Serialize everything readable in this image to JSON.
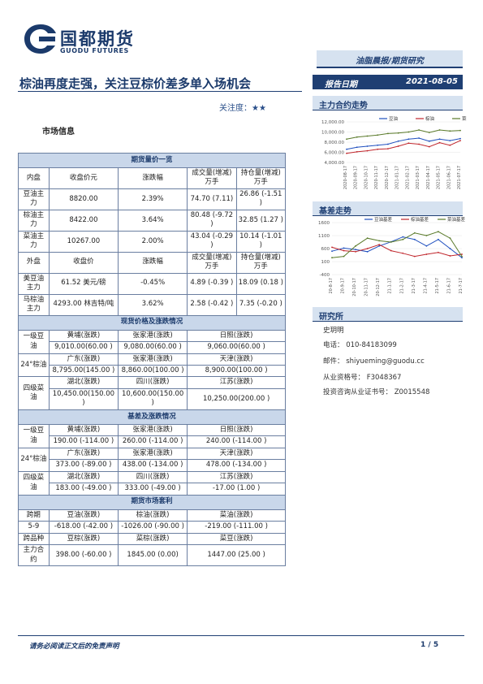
{
  "header": {
    "logo_cn": "国都期货",
    "logo_en": "GUODU FUTURES",
    "category": "油脂晨报/期货研究",
    "title": "棕油再度走强，关注豆棕价差多单入场机会",
    "focus_label": "关注度：",
    "focus_stars": "★★",
    "date_label": "报告日期",
    "date_value": "2021-08-05"
  },
  "section_market": "市场信息",
  "table": {
    "futures_title": "期货量价一览",
    "inner_head": [
      "内盘",
      "收盘价元",
      "涨跌幅",
      "成交量(增减)万手",
      "持仓量(增减)万手"
    ],
    "inner_rows": [
      [
        "豆油主力",
        "8820.00",
        "2.39%",
        "74.70 (7.11)",
        "26.86 (-1.51 )"
      ],
      [
        "棕油主力",
        "8422.00",
        "3.64%",
        "80.48 (-9.72 )",
        "32.85 (1.27 )"
      ],
      [
        "菜油主力",
        "10267.00",
        "2.00%",
        "43.04 (-0.29 )",
        "10.14 (-1.01 )"
      ]
    ],
    "outer_head": [
      "外盘",
      "收盘价",
      "涨跌幅",
      "成交量(增减)万手",
      "持仓量(增减)万手"
    ],
    "outer_rows": [
      [
        "美豆油主力",
        "61.52 美元/磅",
        "-0.45%",
        "4.89 (-0.39 )",
        "18.09 (0.18 )"
      ],
      [
        "马棕油主力",
        "4293.00 林吉特/吨",
        "3.62%",
        "2.58 (-0.42 )",
        "7.35 (-0.20 )"
      ]
    ],
    "spot_title": "现货价格及涨跌情况",
    "spot_blocks": [
      {
        "label": "一级豆油",
        "regions": [
          "黄埔(涨跌)",
          "张家港(涨跌)",
          "日照(涨跌)"
        ],
        "values": [
          "9,010.00(60.00 )",
          "9,080.00(60.00 )",
          "9,060.00(60.00 )"
        ]
      },
      {
        "label": "24°棕油",
        "regions": [
          "广东(涨跌)",
          "张家港(涨跌)",
          "天津(涨跌)"
        ],
        "values": [
          "8,795.00(145.00 )",
          "8,860.00(100.00 )",
          "8,900.00(100.00 )"
        ]
      },
      {
        "label": "四级菜油",
        "regions": [
          "湖北(涨跌)",
          "四川(涨跌)",
          "江苏(涨跌)"
        ],
        "values": [
          "10,450.00(150.00 )",
          "10,600.00(150.00 )",
          "10,250.00(200.00 )"
        ]
      }
    ],
    "basis_title": "基差及涨跌情况",
    "basis_blocks": [
      {
        "label": "一级豆油",
        "regions": [
          "黄埔(涨跌)",
          "张家港(涨跌)",
          "日照(涨跌)"
        ],
        "values": [
          "190.00 (-114.00 )",
          "260.00 (-114.00 )",
          "240.00 (-114.00 )"
        ]
      },
      {
        "label": "24°棕油",
        "regions": [
          "广东(涨跌)",
          "张家港(涨跌)",
          "天津(涨跌)"
        ],
        "values": [
          "373.00 (-89.00 )",
          "438.00 (-134.00 )",
          "478.00 (-134.00 )"
        ]
      },
      {
        "label": "四级菜油",
        "regions": [
          "湖北(涨跌)",
          "四川(涨跌)",
          "江苏(涨跌)"
        ],
        "values": [
          "183.00 (-49.00 )",
          "333.00 (-49.00 )",
          "-17.00 (1.00 )"
        ]
      }
    ],
    "arb_title": "期货市场套利",
    "arb_head1": [
      "跨期",
      "豆油(涨跌)",
      "棕油(涨跌)",
      "菜油(涨跌)"
    ],
    "arb_row1": [
      "5-9",
      "-618.00 (-42.00 )",
      "-1026.00 (-90.00 )",
      "-219.00 (-111.00 )"
    ],
    "arb_head2": [
      "跨品种",
      "豆棕(涨跌)",
      "菜棕(涨跌)",
      "菜豆(涨跌)"
    ],
    "arb_row2": [
      "主力合约",
      "398.00   (-60.00 )",
      "1845.00   (0.00)",
      "1447.00 (25.00 )"
    ]
  },
  "side": {
    "trend_title": "主力合约走势",
    "basis_title": "基差走势",
    "research_title": "研究所",
    "researcher": "史玥明",
    "phone": "电话： 010-84183099",
    "email": "邮件： shiyueming@guodu.cc",
    "license": "从业资格号： F3048367",
    "advisor": "投资咨询从业证书号： Z0015548"
  },
  "footer": {
    "disclaimer": "请务必阅读正文后的免责声明",
    "page": "1 / 5"
  },
  "colors": {
    "brand": "#1f3f73",
    "soy": "#1f4fbf",
    "palm": "#c0262c",
    "rapeseed": "#5a7a2a"
  },
  "chart_data": [
    {
      "type": "line",
      "title": "主力合约走势",
      "x": [
        "2020-08-17",
        "2020-09-17",
        "2020-10-17",
        "2020-11-17",
        "2020-12-17",
        "2021-01-17",
        "2021-02-17",
        "2021-03-17",
        "2021-04-17",
        "2021-05-17",
        "2021-06-17",
        "2021-07-17"
      ],
      "yticks": [
        "12,000.00",
        "10,000.00",
        "8,000.00",
        "6,000.00",
        "4,000.00"
      ],
      "ylim": [
        4000,
        12000
      ],
      "legend": "top-right",
      "series": [
        {
          "name": "豆油",
          "values": [
            6600,
            7000,
            7200,
            7400,
            7600,
            8200,
            8600,
            8800,
            8200,
            8600,
            8300,
            8700
          ]
        },
        {
          "name": "棕油",
          "values": [
            5800,
            6100,
            6300,
            6600,
            6700,
            7200,
            7800,
            7600,
            7100,
            7900,
            7400,
            8300
          ]
        },
        {
          "name": "菜油",
          "values": [
            8600,
            9000,
            9200,
            9400,
            9700,
            9800,
            10000,
            10400,
            9900,
            10400,
            10200,
            10300
          ]
        }
      ]
    },
    {
      "type": "line",
      "title": "基差走势",
      "x": [
        "20-8-17",
        "20-9-17",
        "20-10-17",
        "20-11-17",
        "20-12-17",
        "21-1-17",
        "21-2-17",
        "21-3-17",
        "21-4-17",
        "21-5-17",
        "21-6-17",
        "21-7-17"
      ],
      "yticks": [
        "1600",
        "1100",
        "600",
        "100",
        "-400"
      ],
      "ylim": [
        -400,
        1600
      ],
      "legend": "top-right",
      "series": [
        {
          "name": "豆油基差",
          "values": [
            500,
            620,
            560,
            480,
            700,
            860,
            1050,
            950,
            700,
            950,
            600,
            250
          ]
        },
        {
          "name": "棕油基差",
          "values": [
            650,
            520,
            480,
            600,
            750,
            520,
            420,
            300,
            380,
            450,
            320,
            380
          ]
        },
        {
          "name": "菜油基差",
          "values": [
            250,
            300,
            700,
            1000,
            900,
            850,
            950,
            1200,
            1100,
            1250,
            1000,
            300
          ]
        }
      ]
    }
  ]
}
